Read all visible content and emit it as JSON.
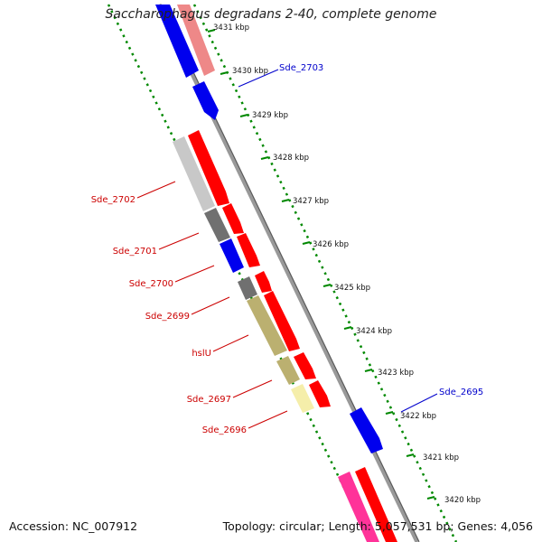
{
  "title": "Saccharophagus degradans 2-40, complete genome",
  "footer": {
    "accession": "Accession: NC_007912",
    "summary": "Topology: circular; Length: 5,057,531 bp; Genes: 4,056"
  },
  "colors": {
    "forward_gene": "#ff0000",
    "reverse_gene": "#0000ff",
    "forward_label": "#cc0000",
    "reverse_label": "#0000cc",
    "backbone": "#888888",
    "scale_dots": "#008800"
  },
  "scale": {
    "unit": "kbp",
    "ticks": [
      {
        "position_kbp": 3431,
        "label": "3431 kbp"
      },
      {
        "position_kbp": 3430,
        "label": "3430 kbp"
      },
      {
        "position_kbp": 3429,
        "label": "3429 kbp"
      },
      {
        "position_kbp": 3428,
        "label": "3428 kbp"
      },
      {
        "position_kbp": 3427,
        "label": "3427 kbp"
      },
      {
        "position_kbp": 3426,
        "label": "3426 kbp"
      },
      {
        "position_kbp": 3425,
        "label": "3425 kbp"
      },
      {
        "position_kbp": 3424,
        "label": "3424 kbp"
      },
      {
        "position_kbp": 3423,
        "label": "3423 kbp"
      },
      {
        "position_kbp": 3422,
        "label": "3422 kbp"
      },
      {
        "position_kbp": 3421,
        "label": "3421 kbp"
      },
      {
        "position_kbp": 3420,
        "label": "3420 kbp"
      }
    ]
  },
  "gene_labels": [
    {
      "name": "Sde_2703",
      "strand": "reverse"
    },
    {
      "name": "Sde_2702",
      "strand": "forward"
    },
    {
      "name": "Sde_2701",
      "strand": "forward"
    },
    {
      "name": "Sde_2700",
      "strand": "forward"
    },
    {
      "name": "Sde_2699",
      "strand": "forward"
    },
    {
      "name": "hslU",
      "strand": "forward"
    },
    {
      "name": "Sde_2697",
      "strand": "forward"
    },
    {
      "name": "Sde_2696",
      "strand": "forward"
    },
    {
      "name": "Sde_2695",
      "strand": "reverse"
    }
  ]
}
